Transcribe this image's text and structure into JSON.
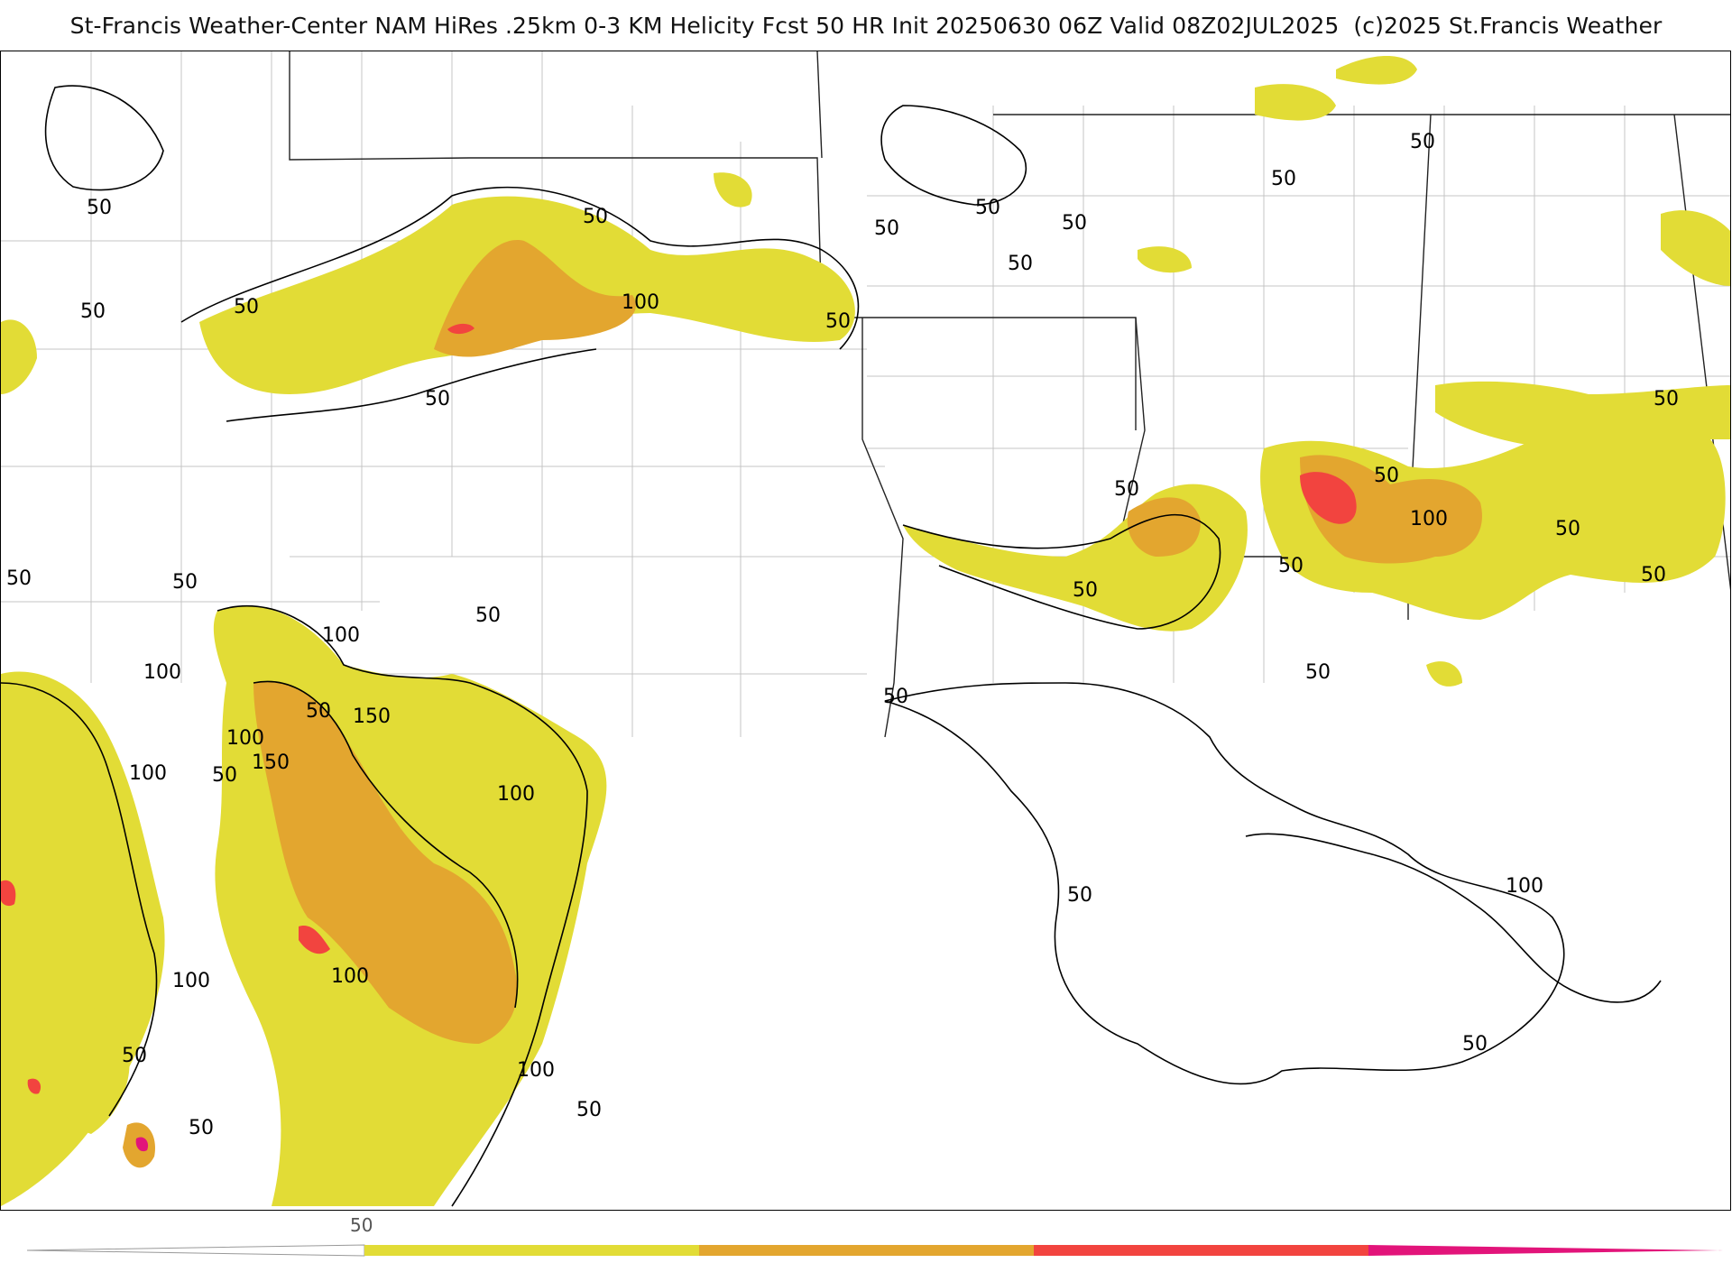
{
  "header": {
    "title": "St-Francis Weather-Center NAM HiRes .25km 0-3 KM Helicity Fcst 50 HR Init 20250630 06Z  Valid 08Z02JUL2025",
    "copyright": "(c)2025 St.Francis Weather"
  },
  "colors": {
    "level_50": "#e2dc36",
    "level_100": "#e3a62f",
    "level_150": "#f2443f",
    "level_200": "#e2147a",
    "contour": "#000000",
    "borders": "#b5b5b5"
  },
  "legend": {
    "tick_label": "50",
    "levels": [
      50,
      100,
      150,
      200
    ]
  },
  "contour_labels": [
    {
      "text": "50"
    },
    {
      "text": "50"
    },
    {
      "text": "50"
    },
    {
      "text": "50"
    },
    {
      "text": "50"
    },
    {
      "text": "50"
    },
    {
      "text": "100"
    },
    {
      "text": "50"
    },
    {
      "text": "50"
    },
    {
      "text": "50"
    },
    {
      "text": "50"
    },
    {
      "text": "50"
    },
    {
      "text": "50"
    },
    {
      "text": "50"
    },
    {
      "text": "50"
    },
    {
      "text": "50"
    },
    {
      "text": "50"
    },
    {
      "text": "50"
    },
    {
      "text": "100"
    },
    {
      "text": "50"
    },
    {
      "text": "50"
    },
    {
      "text": "50"
    },
    {
      "text": "50"
    },
    {
      "text": "50"
    },
    {
      "text": "100"
    },
    {
      "text": "50"
    },
    {
      "text": "150"
    },
    {
      "text": "100"
    },
    {
      "text": "150"
    },
    {
      "text": "100"
    },
    {
      "text": "50"
    },
    {
      "text": "100"
    },
    {
      "text": "100"
    },
    {
      "text": "100"
    },
    {
      "text": "50"
    },
    {
      "text": "100"
    },
    {
      "text": "50"
    },
    {
      "text": "100"
    },
    {
      "text": "50"
    },
    {
      "text": "50"
    },
    {
      "text": "50"
    },
    {
      "text": "100"
    },
    {
      "text": "50"
    },
    {
      "text": "50"
    }
  ]
}
